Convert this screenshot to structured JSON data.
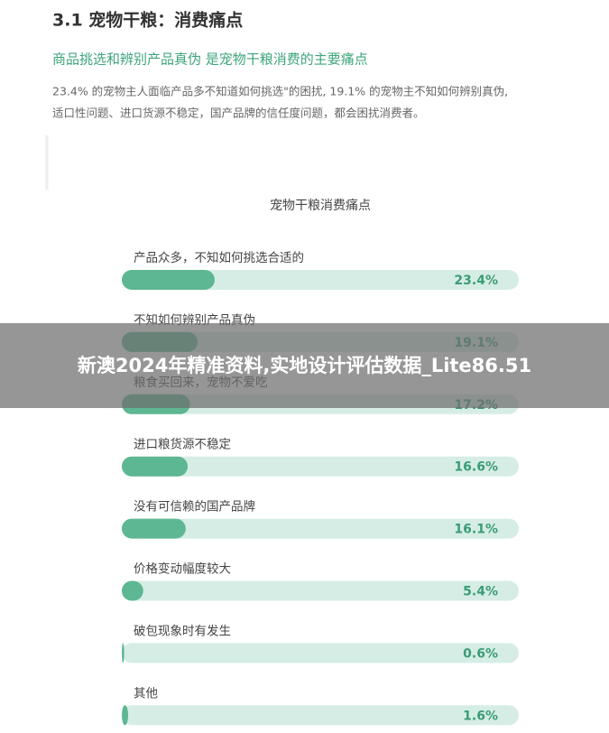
{
  "header": {
    "title": "3.1 宠物干粮：消费痛点",
    "subtitle": "商品挑选和辨别产品真伪 是宠物干粮消费的主要痛点",
    "paragraph": [
      "23.4% 的宠物主人面临产品多不知道如何挑选\"的困扰, 19.1% 的宠物主不知如何辨别真伪,",
      "适口性问题、进口货源不稳定，国产品牌的信任度问题，都会困扰消费者。"
    ]
  },
  "chart_data": {
    "type": "bar",
    "orientation": "horizontal",
    "title": "宠物干粮消费痛点",
    "categories": [
      "产品众多，不知如何挑选合适的",
      "不知如何辨别产品真伪",
      "粮食买回来，宠物不爱吃",
      "进口粮货源不稳定",
      "没有可信赖的国产品牌",
      "价格变动幅度较大",
      "破包现象时有发生",
      "其他"
    ],
    "values": [
      23.4,
      19.1,
      17.2,
      16.6,
      16.1,
      5.4,
      0.6,
      1.6
    ],
    "value_labels": [
      "23.4%",
      "19.1%",
      "17.2%",
      "16.6%",
      "16.1%",
      "5.4%",
      "0.6%",
      "1.6%"
    ],
    "color": "#5db792",
    "track_color": "#d6ede6",
    "xlim": [
      0,
      100
    ]
  },
  "overlay": {
    "text": "新澳2024年精准资料,实地设计评估数据_Lite86.51"
  }
}
